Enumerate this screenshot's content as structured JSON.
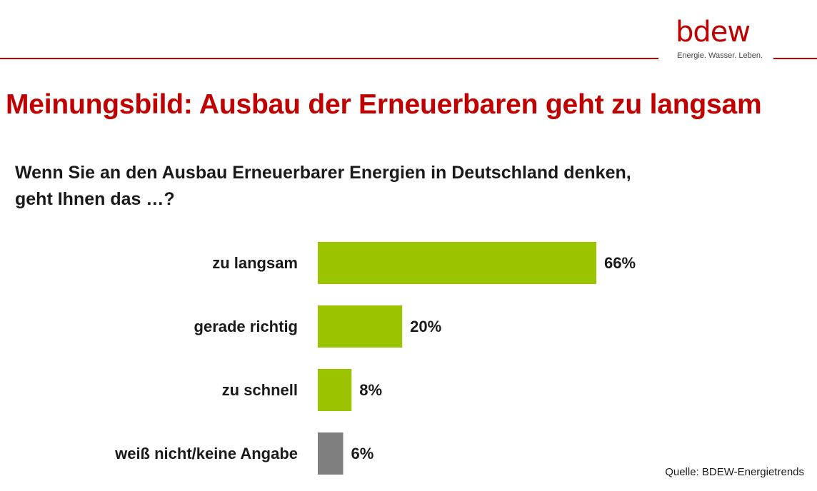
{
  "brand": {
    "name": "bdew",
    "tagline": "Energie. Wasser. Leben.",
    "accent_color": "#c00000"
  },
  "title": "Meinungsbild: Ausbau der Erneuerbaren geht zu langsam",
  "question": {
    "line1": "Wenn Sie an den Ausbau Erneuerbarer Energien in Deutschland denken,",
    "line2": "geht Ihnen das …?"
  },
  "source": "Quelle: BDEW-Energietrends",
  "chart_data": {
    "type": "bar",
    "orientation": "horizontal",
    "categories": [
      "zu langsam",
      "gerade richtig",
      "zu schnell",
      "weiß nicht/keine Angabe"
    ],
    "values": [
      66,
      20,
      8,
      6
    ],
    "value_labels": [
      "66%",
      "20%",
      "8%",
      "6%"
    ],
    "unit": "%",
    "colors": [
      "#9bc400",
      "#9bc400",
      "#9bc400",
      "#7f7f7f"
    ],
    "xlim": [
      0,
      66
    ],
    "grid": false,
    "legend": "none",
    "title": "",
    "xlabel": "",
    "ylabel": ""
  }
}
